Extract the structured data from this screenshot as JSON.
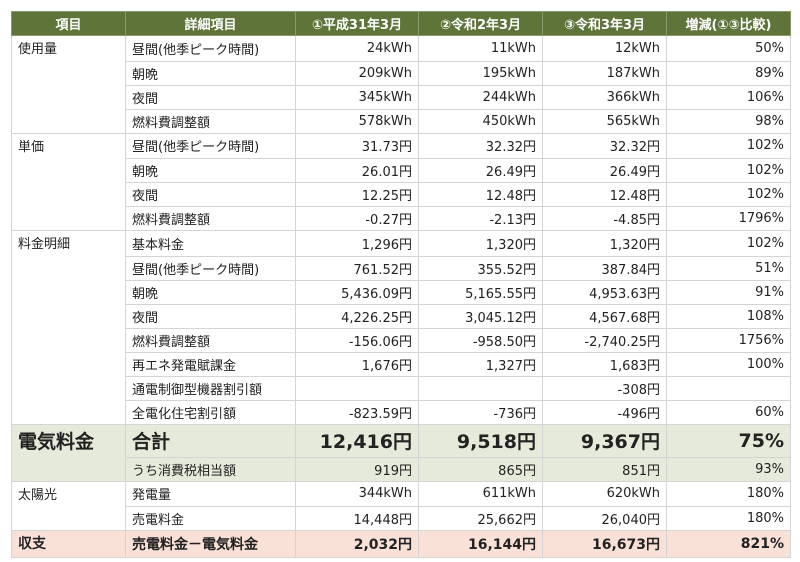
{
  "table": {
    "headers": [
      "項目",
      "詳細項目",
      "①平成31年3月",
      "②令和2年3月",
      "③令和3年3月",
      "増減(①③比較)"
    ],
    "groups": [
      {
        "category": "使用量",
        "rows": [
          {
            "item": "昼間(他季ピーク時間)",
            "v1": "24kWh",
            "v2": "11kWh",
            "v3": "12kWh",
            "change": "50%"
          },
          {
            "item": "朝晩",
            "v1": "209kWh",
            "v2": "195kWh",
            "v3": "187kWh",
            "change": "89%"
          },
          {
            "item": "夜間",
            "v1": "345kWh",
            "v2": "244kWh",
            "v3": "366kWh",
            "change": "106%"
          },
          {
            "item": "燃料費調整額",
            "v1": "578kWh",
            "v2": "450kWh",
            "v3": "565kWh",
            "change": "98%"
          }
        ]
      },
      {
        "category": "単価",
        "rows": [
          {
            "item": "昼間(他季ピーク時間)",
            "v1": "31.73円",
            "v2": "32.32円",
            "v3": "32.32円",
            "change": "102%"
          },
          {
            "item": "朝晩",
            "v1": "26.01円",
            "v2": "26.49円",
            "v3": "26.49円",
            "change": "102%"
          },
          {
            "item": "夜間",
            "v1": "12.25円",
            "v2": "12.48円",
            "v3": "12.48円",
            "change": "102%"
          },
          {
            "item": "燃料費調整額",
            "v1": "-0.27円",
            "v2": "-2.13円",
            "v3": "-4.85円",
            "change": "1796%"
          }
        ]
      },
      {
        "category": "料金明細",
        "rows": [
          {
            "item": "基本料金",
            "v1": "1,296円",
            "v2": "1,320円",
            "v3": "1,320円",
            "change": "102%"
          },
          {
            "item": "昼間(他季ピーク時間)",
            "v1": "761.52円",
            "v2": "355.52円",
            "v3": "387.84円",
            "change": "51%"
          },
          {
            "item": "朝晩",
            "v1": "5,436.09円",
            "v2": "5,165.55円",
            "v3": "4,953.63円",
            "change": "91%"
          },
          {
            "item": "夜間",
            "v1": "4,226.25円",
            "v2": "3,045.12円",
            "v3": "4,567.68円",
            "change": "108%"
          },
          {
            "item": "燃料費調整額",
            "v1": "-156.06円",
            "v2": "-958.50円",
            "v3": "-2,740.25円",
            "change": "1756%"
          },
          {
            "item": "再エネ発電賦課金",
            "v1": "1,676円",
            "v2": "1,327円",
            "v3": "1,683円",
            "change": "100%"
          },
          {
            "item": "通電制御型機器割引額",
            "v1": "",
            "v2": "",
            "v3": "-308円",
            "change": ""
          },
          {
            "item": "全電化住宅割引額",
            "v1": "-823.59円",
            "v2": "-736円",
            "v3": "-496円",
            "change": "60%"
          }
        ]
      },
      {
        "category": "電気料金",
        "rows": [
          {
            "item": "合計",
            "v1": "12,416円",
            "v2": "9,518円",
            "v3": "9,367円",
            "change": "75%"
          },
          {
            "item": "うち消費税相当額",
            "v1": "919円",
            "v2": "865円",
            "v3": "851円",
            "change": "93%"
          }
        ]
      },
      {
        "category": "太陽光",
        "rows": [
          {
            "item": "発電量",
            "v1": "344kWh",
            "v2": "611kWh",
            "v3": "620kWh",
            "change": "180%"
          },
          {
            "item": "売電料金",
            "v1": "14,448円",
            "v2": "25,662円",
            "v3": "26,040円",
            "change": "180%"
          }
        ]
      },
      {
        "category": "収支",
        "rows": [
          {
            "item": "売電料金－電気料金",
            "v1": "2,032円",
            "v2": "16,144円",
            "v3": "16,673円",
            "change": "821%"
          }
        ]
      }
    ]
  },
  "colors": {
    "header_bg": "#5e7439",
    "total_bg": "#e6eadb",
    "balance_bg": "#f9e1d8"
  }
}
